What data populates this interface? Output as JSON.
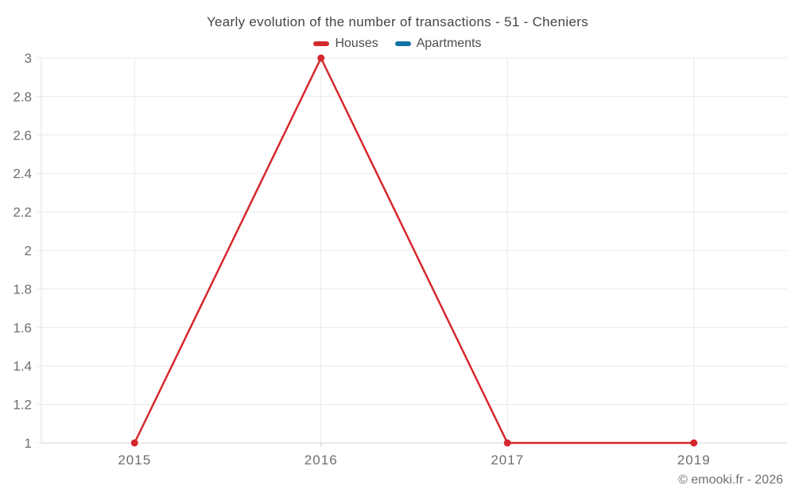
{
  "title": "Yearly evolution of the number of transactions - 51 - Cheniers",
  "watermark": "© emooki.fr - 2026",
  "chart_data": {
    "type": "line",
    "title": "Yearly evolution of the number of transactions - 51 - Cheniers",
    "categories": [
      "2015",
      "2016",
      "2017",
      "2019"
    ],
    "series": [
      {
        "name": "Houses",
        "color": "#d5282c",
        "values": [
          1,
          3,
          1,
          1
        ]
      },
      {
        "name": "Apartments",
        "color": "#1272a5",
        "values": []
      }
    ],
    "xlabel": "",
    "ylabel": "",
    "ylim": [
      1,
      3
    ],
    "yticks": {
      "values": [
        1,
        1.2,
        1.4,
        1.6,
        1.8,
        2,
        2.2,
        2.4,
        2.6,
        2.8,
        3
      ],
      "labels": [
        "1",
        "1.2",
        "1.4",
        "1.6",
        "1.8",
        "2",
        "2.2",
        "2.4",
        "2.6",
        "2.8",
        "3"
      ]
    },
    "grid": true,
    "legend_position": "top",
    "marker": "circle"
  },
  "colors": {
    "grid": "#e8e8e8",
    "axis_line": "#d4d4d4",
    "axis_border": "#e2e2e2",
    "axis_text": "#6e6e6e",
    "title_text": "#454545",
    "legend_text": "#4c4c4c",
    "watermark_text": "#6f6f6f"
  }
}
